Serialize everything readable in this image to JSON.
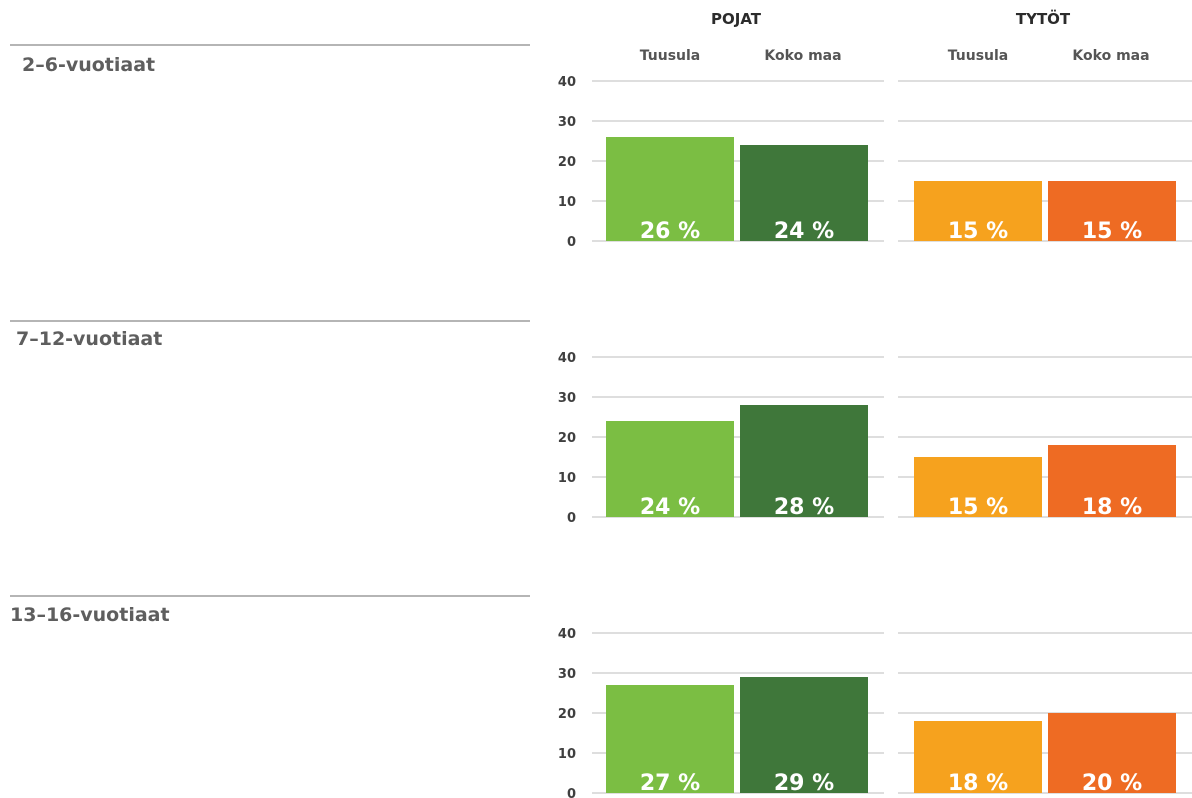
{
  "chart_data": {
    "type": "bar",
    "groups": [
      {
        "name": "POJAT",
        "categories": [
          "Tuusula",
          "Koko maa"
        ],
        "colors": [
          "#7bbe43",
          "#3f773a"
        ]
      },
      {
        "name": "TYTÖT",
        "categories": [
          "Tuusula",
          "Koko maa"
        ],
        "colors": [
          "#f6a21e",
          "#ee6b23"
        ]
      }
    ],
    "y_ticks": [
      0,
      10,
      20,
      30,
      40
    ],
    "ylim": [
      0,
      40
    ],
    "value_suffix": " %",
    "grid": true,
    "panels": [
      {
        "title": "2–6-vuotiaat",
        "series": [
          {
            "name": "POJAT",
            "values": [
              26,
              24
            ],
            "labels": [
              "26 %",
              "24 %"
            ]
          },
          {
            "name": "TYTÖT",
            "values": [
              15,
              15
            ],
            "labels": [
              "15 %",
              "15 %"
            ]
          }
        ]
      },
      {
        "title": "7–12-vuotiaat",
        "series": [
          {
            "name": "POJAT",
            "values": [
              24,
              28
            ],
            "labels": [
              "24 %",
              "28 %"
            ]
          },
          {
            "name": "TYTÖT",
            "values": [
              15,
              18
            ],
            "labels": [
              "15 %",
              "18 %"
            ]
          }
        ]
      },
      {
        "title": "13–16-vuotiaat",
        "series": [
          {
            "name": "POJAT",
            "values": [
              27,
              29
            ],
            "labels": [
              "27 %",
              "29 %"
            ]
          },
          {
            "name": "TYTÖT",
            "values": [
              18,
              20
            ],
            "labels": [
              "18 %",
              "20 %"
            ]
          }
        ]
      }
    ]
  }
}
